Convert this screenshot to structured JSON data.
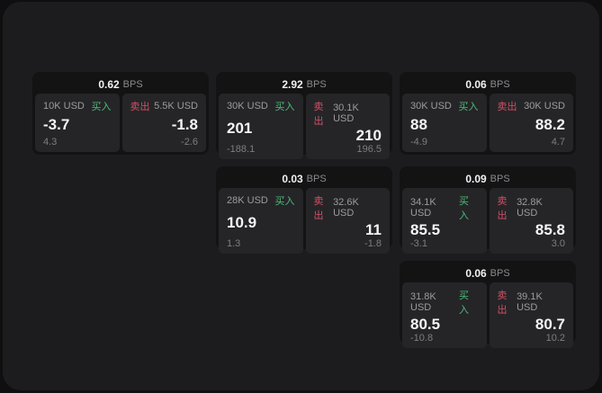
{
  "page": {
    "bps_suffix": "BPS",
    "buy_label": "买入",
    "sell_label": "卖出",
    "colors": {
      "buy_green": "#4bbd77",
      "sell_red": "#d25064",
      "surface_bg": "#1c1c1e",
      "card_bg": "#131314",
      "tile_bg": "#252528",
      "outer_bg": "#0f0f10"
    }
  },
  "cards": [
    {
      "bps": "0.62",
      "buy": {
        "amount": "10K USD",
        "price": "-3.7",
        "delta": "4.3"
      },
      "sell": {
        "amount": "5.5K USD",
        "price": "-1.8",
        "delta": "-2.6"
      }
    },
    {
      "bps": "2.92",
      "buy": {
        "amount": "30K USD",
        "price": "201",
        "delta": "-188.1"
      },
      "sell": {
        "amount": "30.1K USD",
        "price": "210",
        "delta": "196.5"
      }
    },
    {
      "bps": "0.06",
      "buy": {
        "amount": "30K USD",
        "price": "88",
        "delta": "-4.9"
      },
      "sell": {
        "amount": "30K USD",
        "price": "88.2",
        "delta": "4.7"
      }
    },
    {
      "bps": "0.03",
      "buy": {
        "amount": "28K USD",
        "price": "10.9",
        "delta": "1.3"
      },
      "sell": {
        "amount": "32.6K USD",
        "price": "11",
        "delta": "-1.8"
      }
    },
    {
      "bps": "0.09",
      "buy": {
        "amount": "34.1K USD",
        "price": "85.5",
        "delta": "-3.1"
      },
      "sell": {
        "amount": "32.8K USD",
        "price": "85.8",
        "delta": "3.0"
      }
    },
    {
      "bps": "0.06",
      "buy": {
        "amount": "31.8K USD",
        "price": "80.5",
        "delta": "-10.8"
      },
      "sell": {
        "amount": "39.1K USD",
        "price": "80.7",
        "delta": "10.2"
      }
    }
  ]
}
